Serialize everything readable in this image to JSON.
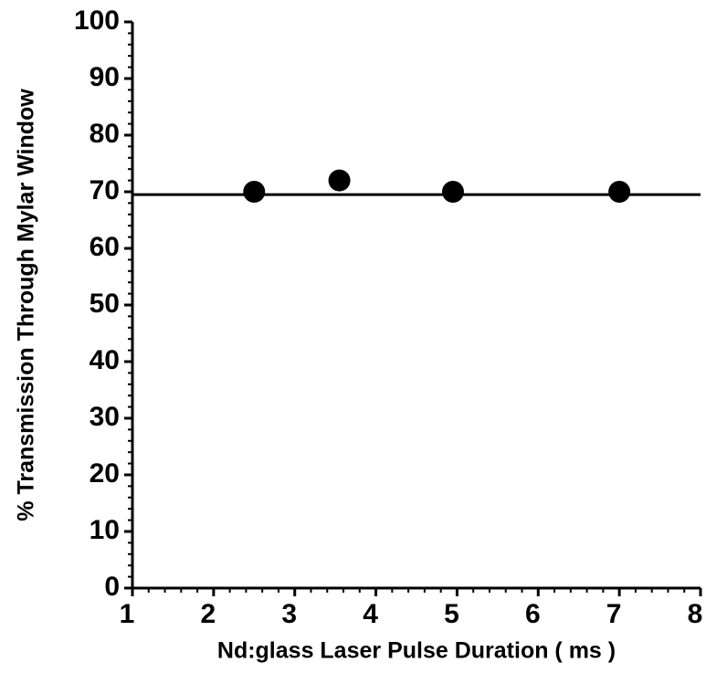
{
  "chart_data": {
    "type": "scatter",
    "x_label": "Nd:glass Laser Pulse Duration ( ms )",
    "y_label": "% Transmission Through Mylar Window",
    "x": [
      2.5,
      3.55,
      4.95,
      7.0
    ],
    "values": [
      70,
      72,
      70,
      70
    ],
    "color": "#000000",
    "reference_line": 69.5,
    "xlim": [
      1,
      8
    ],
    "xticks": [
      1,
      2,
      3,
      4,
      5,
      6,
      7,
      8
    ],
    "ylim": [
      0,
      100
    ],
    "yticks": [
      0,
      10,
      20,
      30,
      40,
      50,
      60,
      70,
      80,
      90,
      100
    ],
    "minor_subdivisions": {
      "x": 5,
      "y": 5
    }
  }
}
